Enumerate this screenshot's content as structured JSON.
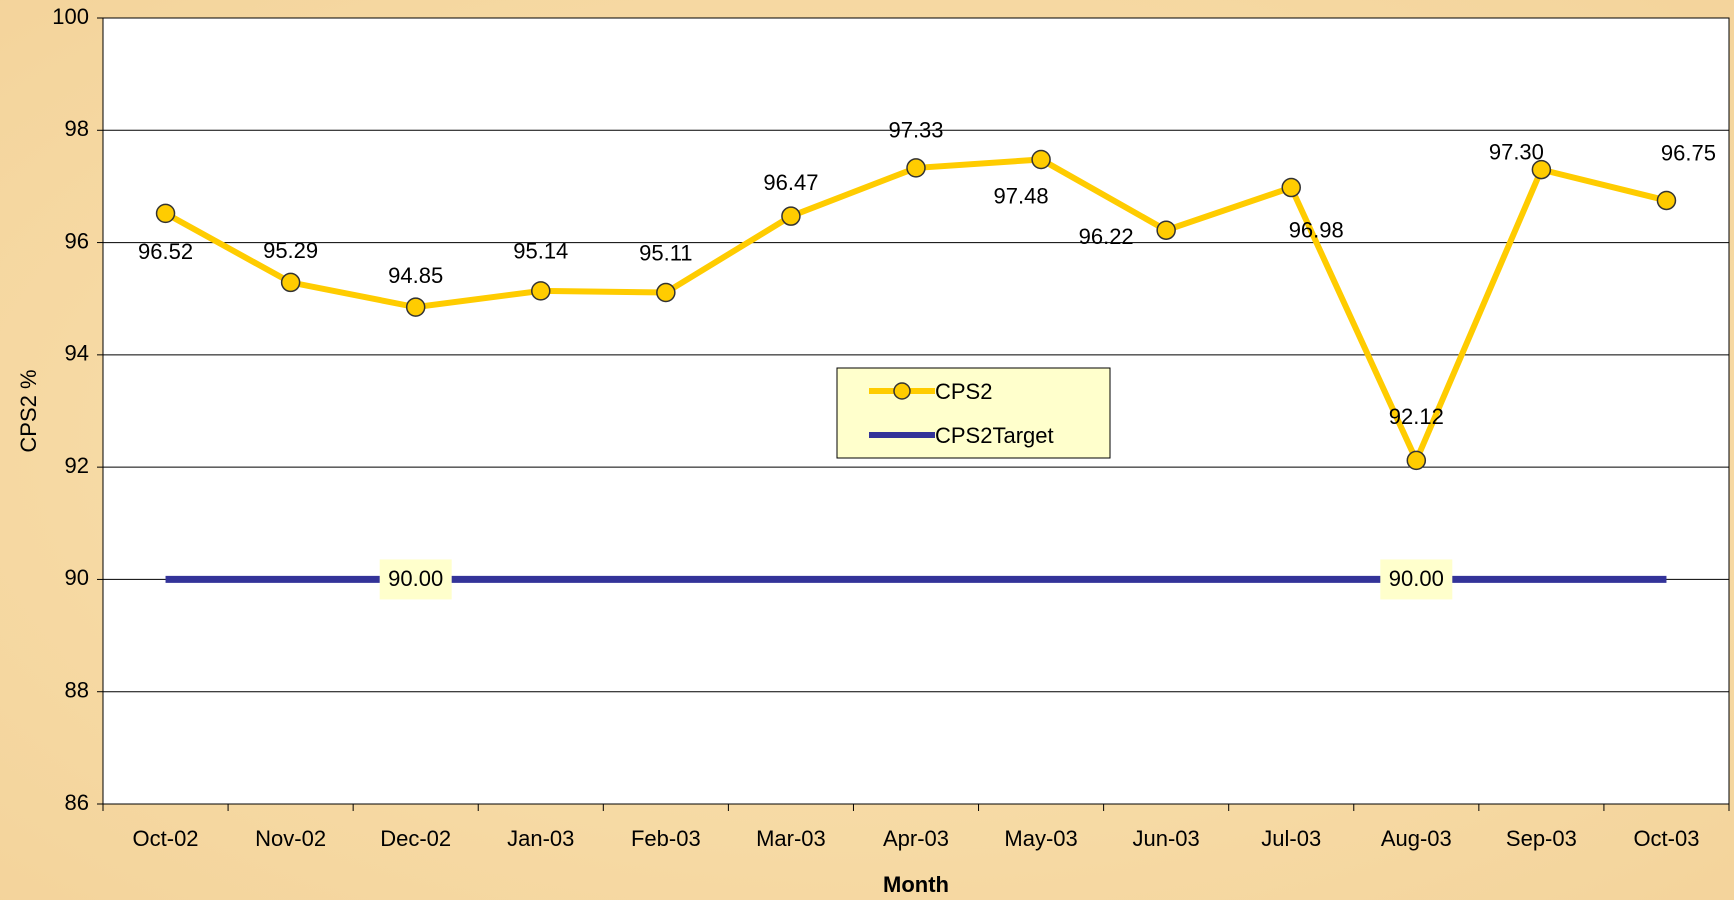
{
  "chart_data": {
    "type": "line",
    "x_label": "Month",
    "y_label": "CPS2  %",
    "categories": [
      "Oct-02",
      "Nov-02",
      "Dec-02",
      "Jan-03",
      "Feb-03",
      "Mar-03",
      "Apr-03",
      "May-03",
      "Jun-03",
      "Jul-03",
      "Aug-03",
      "Sep-03",
      "Oct-03"
    ],
    "series": [
      {
        "name": "CPS2",
        "color": "#ffcc00",
        "marker": true,
        "values": [
          96.52,
          95.29,
          94.85,
          95.14,
          95.11,
          96.47,
          97.33,
          97.48,
          96.22,
          96.98,
          92.12,
          97.3,
          96.75
        ],
        "value_labels": [
          "96.52",
          "95.29",
          "94.85",
          "95.14",
          "95.11",
          "96.47",
          "97.33",
          "97.48",
          "96.22",
          "96.98",
          "92.12",
          "97.30",
          "96.75"
        ]
      },
      {
        "name": "CPS2Target",
        "color": "#333399",
        "marker": false,
        "values": [
          90,
          90,
          90,
          90,
          90,
          90,
          90,
          90,
          90,
          90,
          90,
          90,
          90
        ],
        "value_labels": [
          null,
          null,
          "90.00",
          null,
          null,
          null,
          null,
          null,
          null,
          null,
          "90.00",
          null,
          null
        ]
      }
    ],
    "ylim": [
      86,
      100
    ],
    "yticks": [
      86,
      88,
      90,
      92,
      94,
      96,
      98,
      100
    ],
    "grid": true,
    "legend": "center"
  }
}
